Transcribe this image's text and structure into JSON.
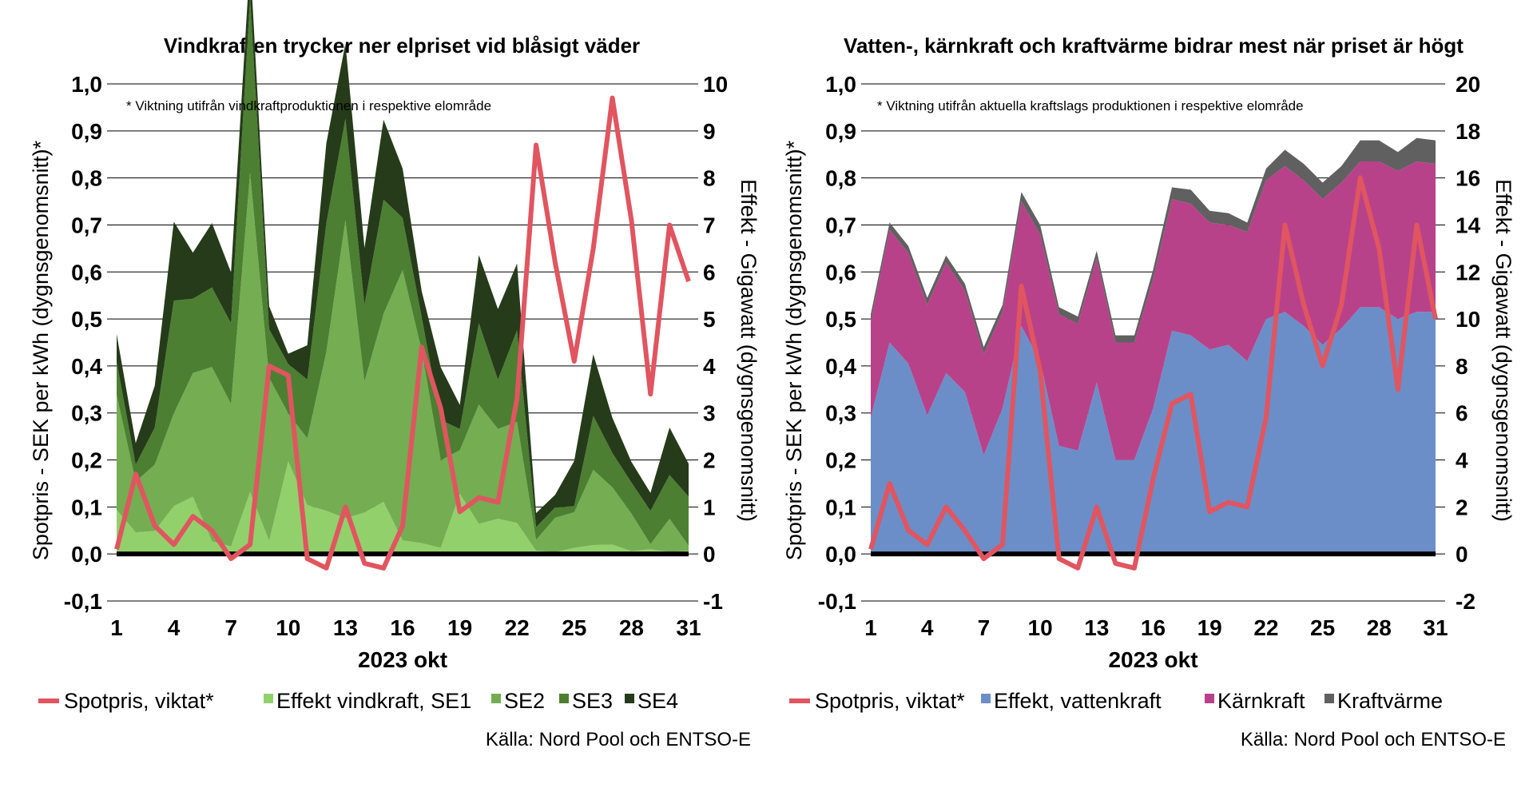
{
  "chart_data": [
    {
      "type": "area",
      "title": "Vindkraften trycker ner elpriset vid blåsigt väder",
      "xlabel": "2023 okt",
      "ylabel": "Spotpris - SEK per kWh (dygnsgenomsnitt)*",
      "y2label": "Effekt - Gigawatt (dygnsgenomsnitt)",
      "note": "* Viktning utifrån vindkraftproduktionen i respektive elområde",
      "source": "Källa: Nord Pool och ENTSO-E",
      "ylim": [
        -0.1,
        1.0
      ],
      "y2lim": [
        -1,
        10
      ],
      "yticks": [
        "-0,1",
        "0,0",
        "0,1",
        "0,2",
        "0,3",
        "0,4",
        "0,5",
        "0,6",
        "0,7",
        "0,8",
        "0,9",
        "1,0"
      ],
      "y2ticks": [
        "-1",
        "0",
        "1",
        "2",
        "3",
        "4",
        "5",
        "6",
        "7",
        "8",
        "9",
        "10"
      ],
      "xticks": [
        "1",
        "4",
        "7",
        "10",
        "13",
        "16",
        "19",
        "22",
        "25",
        "28",
        "31"
      ],
      "grid": true,
      "legend_position": "bottom",
      "days": [
        1,
        2,
        3,
        4,
        5,
        6,
        7,
        8,
        9,
        10,
        11,
        12,
        13,
        14,
        15,
        16,
        17,
        18,
        19,
        20,
        21,
        22,
        23,
        24,
        25,
        26,
        27,
        28,
        29,
        30,
        31
      ],
      "area_series": [
        {
          "name": "Effekt vindkraft, SE1",
          "color": "#92d06c",
          "values": [
            0.94,
            0.46,
            0.49,
            1.02,
            1.22,
            0.27,
            0.16,
            1.32,
            0.28,
            1.97,
            1.04,
            0.92,
            0.76,
            0.88,
            1.11,
            0.29,
            0.23,
            0.13,
            1.28,
            0.64,
            0.75,
            0.66,
            0.07,
            0.04,
            0.13,
            0.19,
            0.2,
            0.06,
            0.1,
            0.04,
            0.07
          ]
        },
        {
          "name": "SE2",
          "color": "#74ad52",
          "values": [
            2.45,
            1.08,
            1.41,
            1.97,
            2.63,
            3.71,
            3.03,
            6.79,
            3.47,
            1.02,
            1.42,
            3.38,
            6.34,
            2.79,
            4.0,
            5.75,
            4.1,
            1.86,
            0.93,
            2.54,
            1.91,
            2.15,
            0.23,
            0.73,
            0.76,
            1.6,
            1.22,
            0.8,
            0.11,
            0.71,
            0.11
          ]
        },
        {
          "name": "SE3",
          "color": "#4c7f32",
          "values": [
            0.7,
            0.36,
            0.79,
            2.4,
            1.58,
            1.69,
            1.72,
            3.72,
            1.03,
            1.05,
            1.25,
            2.74,
            2.16,
            1.63,
            2.43,
            1.11,
            0.71,
            0.86,
            0.45,
            1.73,
            1.05,
            1.95,
            0.27,
            0.22,
            0.13,
            1.15,
            0.73,
            0.66,
            0.71,
            0.93,
            1.04
          ]
        },
        {
          "name": "SE4",
          "color": "#253b1a",
          "values": [
            0.59,
            0.46,
            0.89,
            1.68,
            0.98,
            1.37,
            1.08,
            0.82,
            0.49,
            0.22,
            0.73,
            1.7,
            1.6,
            1.21,
            1.7,
            1.05,
            0.55,
            1.12,
            0.51,
            1.45,
            1.5,
            1.42,
            0.3,
            0.27,
            0.96,
            1.31,
            0.75,
            0.44,
            0.38,
            1.01,
            0.7
          ]
        }
      ],
      "line_series": {
        "name": "Spotpris, viktat*",
        "color": "#e05560",
        "axis": "left",
        "values": [
          0.01,
          0.17,
          0.06,
          0.02,
          0.08,
          0.05,
          -0.01,
          0.02,
          0.4,
          0.38,
          -0.01,
          -0.03,
          0.1,
          -0.02,
          -0.03,
          0.06,
          0.44,
          0.31,
          0.09,
          0.12,
          0.11,
          0.33,
          0.87,
          0.62,
          0.41,
          0.65,
          0.97,
          0.71,
          0.34,
          0.7,
          0.58
        ]
      }
    },
    {
      "type": "area",
      "title": "Vatten-, kärnkraft och kraftvärme bidrar mest när priset är högt",
      "xlabel": "2023 okt",
      "ylabel": "Spotpris - SEK per kWh (dygnsgenomsnitt)*",
      "y2label": "Effekt - Gigawatt (dygnsgenomsnitt)",
      "note": "* Viktning utifrån aktuella kraftslags produktionen i respektive elområde",
      "source": "Källa: Nord Pool och ENTSO-E",
      "ylim": [
        -0.1,
        1.0
      ],
      "y2lim": [
        -2,
        20
      ],
      "yticks": [
        "-0,1",
        "0,0",
        "0,1",
        "0,2",
        "0,3",
        "0,4",
        "0,5",
        "0,6",
        "0,7",
        "0,8",
        "0,9",
        "1,0"
      ],
      "y2ticks": [
        "-2",
        "0",
        "2",
        "4",
        "6",
        "8",
        "10",
        "12",
        "14",
        "16",
        "18",
        "20"
      ],
      "xticks": [
        "1",
        "4",
        "7",
        "10",
        "13",
        "16",
        "19",
        "22",
        "25",
        "28",
        "31"
      ],
      "grid": true,
      "legend_position": "bottom",
      "days": [
        1,
        2,
        3,
        4,
        5,
        6,
        7,
        8,
        9,
        10,
        11,
        12,
        13,
        14,
        15,
        16,
        17,
        18,
        19,
        20,
        21,
        22,
        23,
        24,
        25,
        26,
        27,
        28,
        29,
        30,
        31
      ],
      "area_series": [
        {
          "name": "Effekt, vattenkraft",
          "color": "#6b8ec8",
          "values": [
            5.8,
            9.0,
            8.1,
            5.9,
            7.7,
            6.9,
            4.2,
            6.2,
            9.7,
            8.2,
            4.6,
            4.4,
            7.3,
            4.0,
            4.0,
            6.2,
            9.5,
            9.3,
            8.7,
            8.9,
            8.2,
            10.0,
            10.3,
            9.7,
            8.9,
            9.6,
            10.5,
            10.5,
            10.0,
            10.3,
            10.3
          ]
        },
        {
          "name": "Kärnkraft",
          "color": "#b8428a",
          "values": [
            4.1,
            4.8,
            4.7,
            4.7,
            4.7,
            4.3,
            4.3,
            4.1,
            5.3,
            5.4,
            5.6,
            5.4,
            5.3,
            5.0,
            5.0,
            5.5,
            5.6,
            5.6,
            5.4,
            5.1,
            5.5,
            5.9,
            6.2,
            6.2,
            6.2,
            6.2,
            6.2,
            6.2,
            6.3,
            6.4,
            6.3
          ]
        },
        {
          "name": "Kraftvärme",
          "color": "#606060",
          "values": [
            0.3,
            0.3,
            0.3,
            0.3,
            0.3,
            0.3,
            0.3,
            0.3,
            0.4,
            0.4,
            0.3,
            0.3,
            0.3,
            0.3,
            0.3,
            0.4,
            0.5,
            0.6,
            0.5,
            0.5,
            0.4,
            0.5,
            0.7,
            0.7,
            0.7,
            0.7,
            0.9,
            0.9,
            0.8,
            1.0,
            1.0
          ]
        }
      ],
      "line_series": {
        "name": "Spotpris, viktat*",
        "color": "#e05560",
        "axis": "left",
        "values": [
          0.01,
          0.15,
          0.05,
          0.02,
          0.1,
          0.05,
          -0.01,
          0.02,
          0.57,
          0.39,
          -0.01,
          -0.03,
          0.1,
          -0.02,
          -0.03,
          0.16,
          0.32,
          0.34,
          0.09,
          0.11,
          0.1,
          0.29,
          0.7,
          0.53,
          0.4,
          0.53,
          0.8,
          0.65,
          0.35,
          0.7,
          0.5
        ]
      }
    }
  ]
}
